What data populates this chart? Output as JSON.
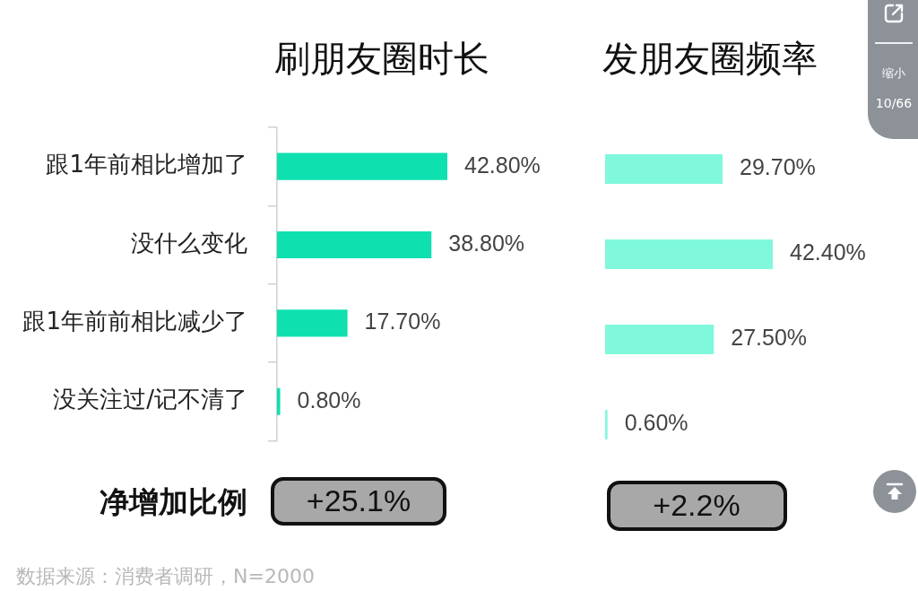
{
  "chart_data": [
    {
      "type": "bar",
      "orientation": "horizontal",
      "title": "刷朋友圈时长",
      "categories": [
        "跟1年前相比增加了",
        "没什么变化",
        "跟1年前前相比减少了",
        "没关注过/记不清了"
      ],
      "values": [
        42.8,
        38.8,
        17.7,
        0.8
      ],
      "color": "#0ee0b0",
      "value_labels": [
        "42.80%",
        "38.80%",
        "17.70%",
        "0.80%"
      ],
      "tick_labels": "y",
      "annotations": [
        "净增加比例",
        "+25.1%",
        "数据来源：消费者调研，N=2000"
      ]
    },
    {
      "type": "bar",
      "orientation": "horizontal",
      "title": "发朋友圈频率",
      "categories": [
        null,
        null,
        null,
        null
      ],
      "values": [
        29.7,
        42.4,
        27.5,
        0.6
      ],
      "color": "#80f8dc",
      "value_labels": [
        "29.70%",
        "42.40%",
        "27.50%",
        "0.60%"
      ],
      "tick_labels": false,
      "annotations": [
        "+2.2%",
        "缩小",
        "10/66"
      ]
    }
  ]
}
